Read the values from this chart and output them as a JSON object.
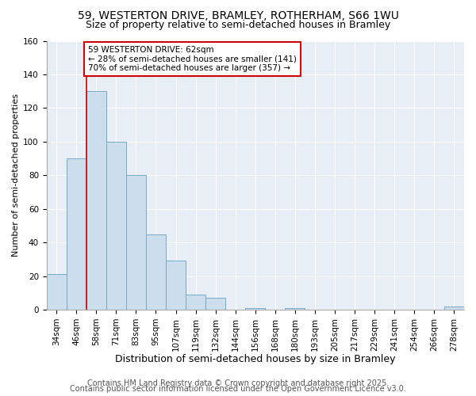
{
  "title1": "59, WESTERTON DRIVE, BRAMLEY, ROTHERHAM, S66 1WU",
  "title2": "Size of property relative to semi-detached houses in Bramley",
  "xlabel": "Distribution of semi-detached houses by size in Bramley",
  "ylabel": "Number of semi-detached properties",
  "bar_labels": [
    "34sqm",
    "46sqm",
    "58sqm",
    "71sqm",
    "83sqm",
    "95sqm",
    "107sqm",
    "119sqm",
    "132sqm",
    "144sqm",
    "156sqm",
    "168sqm",
    "180sqm",
    "193sqm",
    "205sqm",
    "217sqm",
    "229sqm",
    "241sqm",
    "254sqm",
    "266sqm",
    "278sqm"
  ],
  "bar_values": [
    21,
    90,
    130,
    100,
    80,
    45,
    29,
    9,
    7,
    0,
    1,
    0,
    1,
    0,
    0,
    0,
    0,
    0,
    0,
    0,
    2
  ],
  "bar_color": "#ccdded",
  "bar_edge_color": "#7aaac8",
  "annotation_box_text": "59 WESTERTON DRIVE: 62sqm\n← 28% of semi-detached houses are smaller (141)\n70% of semi-detached houses are larger (357) →",
  "annotation_box_facecolor": "white",
  "annotation_box_edgecolor": "#cc0000",
  "vline_color": "#cc0000",
  "vline_bar_index": 2,
  "ylim": [
    0,
    160
  ],
  "yticks": [
    0,
    20,
    40,
    60,
    80,
    100,
    120,
    140,
    160
  ],
  "footer1": "Contains HM Land Registry data © Crown copyright and database right 2025.",
  "footer2": "Contains public sector information licensed under the Open Government Licence v3.0.",
  "bg_color": "#ffffff",
  "plot_bg_color": "#e8eef5",
  "grid_color": "#ffffff",
  "title1_fontsize": 10,
  "title2_fontsize": 9,
  "tick_fontsize": 7.5,
  "xlabel_fontsize": 9,
  "ylabel_fontsize": 8,
  "annotation_fontsize": 7.5,
  "footer_fontsize": 7
}
